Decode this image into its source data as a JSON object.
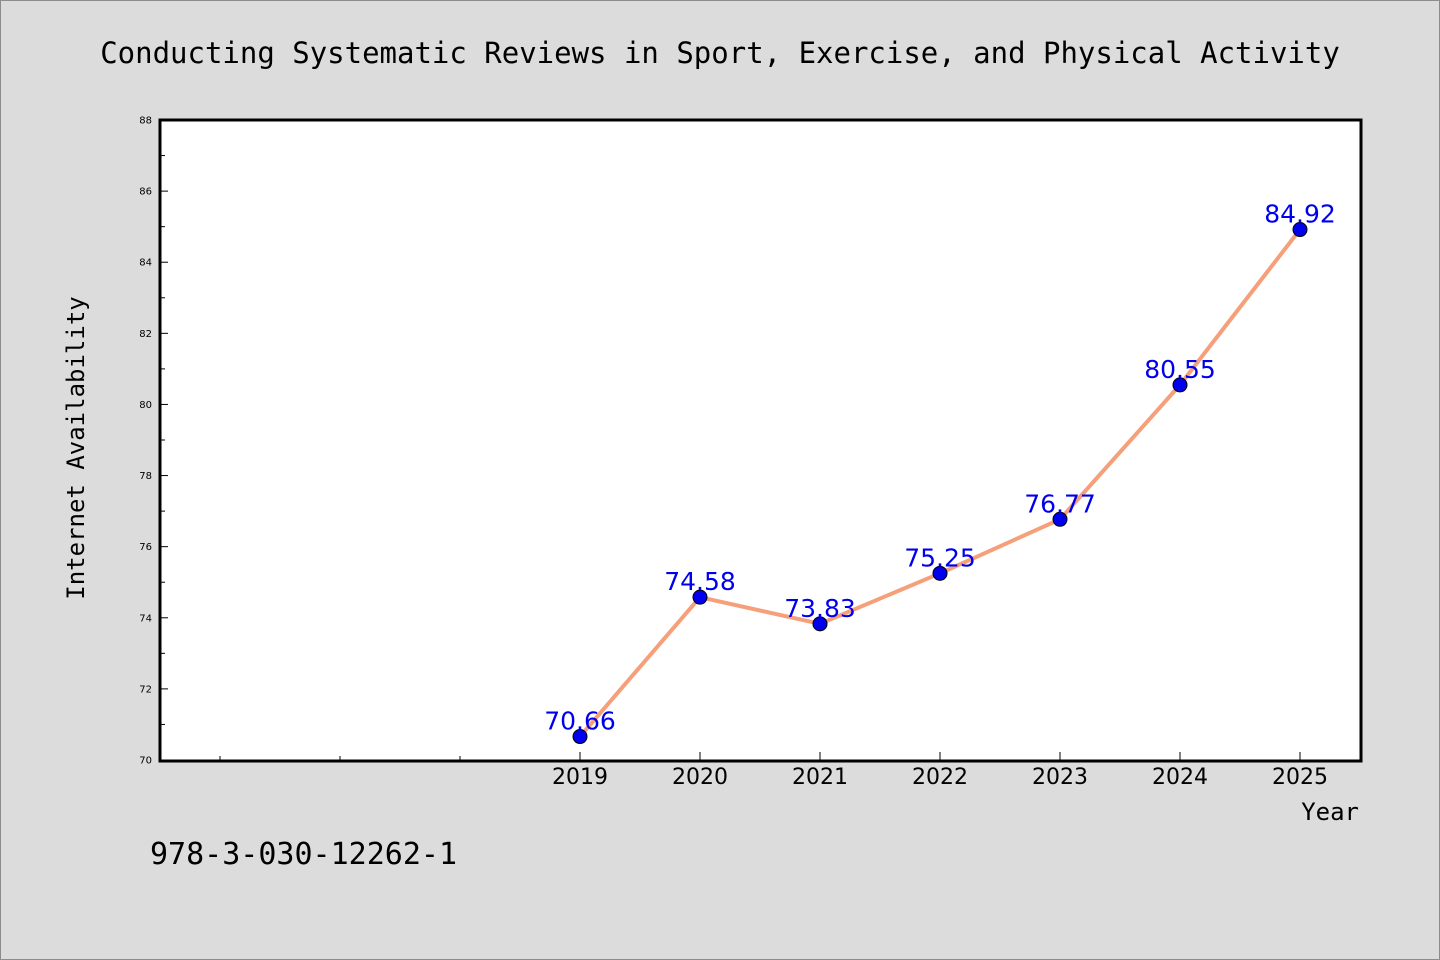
{
  "chart_data": {
    "type": "line",
    "title": "Conducting Systematic Reviews in Sport, Exercise, and Physical Activity",
    "xlabel": "Year",
    "ylabel": "Internet Availability",
    "x": [
      "2019",
      "2020",
      "2021",
      "2022",
      "2023",
      "2024",
      "2025"
    ],
    "values": [
      70.66,
      74.58,
      73.83,
      75.25,
      76.77,
      80.55,
      84.92
    ],
    "data_labels": [
      "70.66",
      "74.58",
      "73.83",
      "75.25",
      "76.77",
      "80.55",
      "84.92"
    ],
    "ylim": [
      70,
      88
    ],
    "yticks": [
      "70",
      "72",
      "74",
      "76",
      "78",
      "80",
      "82",
      "84",
      "86",
      "88"
    ],
    "x_axis_start_year": 2015.5,
    "x_axis_end_year": 2025.5,
    "grid": false,
    "line_color": "#f5a07a",
    "marker_color": "#0000ee",
    "label_color": "#0000ee",
    "background_color": "#dcdcdc",
    "plot_background_color": "#ffffff"
  },
  "footnote": "978-3-030-12262-1"
}
